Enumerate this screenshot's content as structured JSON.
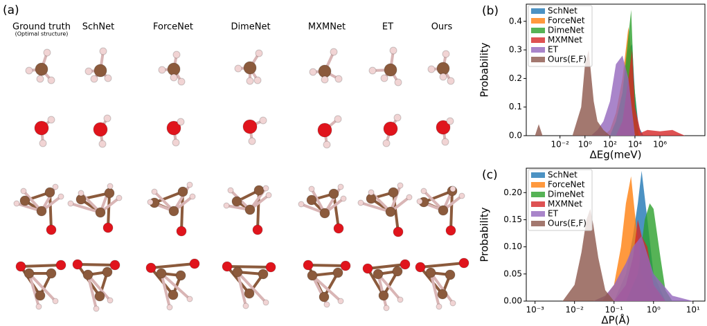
{
  "panel_a": {
    "label": "(a)",
    "columns": [
      "Ground truth",
      "SchNet",
      "ForceNet",
      "DimeNet",
      "MXMNet",
      "ET",
      "Ours"
    ],
    "column_note": "(Optimal structure)"
  },
  "chart_data": [
    {
      "type": "area",
      "panel": "(b)",
      "x_label": "ΔEg(meV)",
      "y_label": "Probability",
      "log_x": true,
      "legend": "upper-left",
      "xlim": [
        2e-05,
        4000000000
      ],
      "ylim": [
        0,
        0.46
      ],
      "xticks": [
        {
          "value": 0.01,
          "label": "10⁻²"
        },
        {
          "value": 1,
          "label": "10⁰"
        },
        {
          "value": 100,
          "label": "10²"
        },
        {
          "value": 10000,
          "label": "10⁴"
        },
        {
          "value": 1000000,
          "label": "10⁶"
        }
      ],
      "yticks": [
        {
          "value": 0,
          "label": "0.0"
        },
        0.1,
        0.2,
        0.3,
        0.4
      ],
      "series": [
        {
          "name": "SchNet",
          "color": "#1f77b4",
          "x": [
            100,
            300,
            1000,
            3000,
            6000,
            10000,
            20000,
            50000
          ],
          "values": [
            0,
            0.05,
            0.15,
            0.3,
            0.32,
            0.15,
            0.03,
            0
          ]
        },
        {
          "name": "ForceNet",
          "color": "#ff7f0e",
          "x": [
            30,
            100,
            300,
            1000,
            3000,
            5000,
            10000,
            30000
          ],
          "values": [
            0,
            0.02,
            0.08,
            0.2,
            0.38,
            0.3,
            0.05,
            0
          ]
        },
        {
          "name": "DimeNet",
          "color": "#2ca02c",
          "x": [
            100,
            300,
            1000,
            3000,
            5000,
            8000,
            20000
          ],
          "values": [
            0,
            0.05,
            0.15,
            0.35,
            0.44,
            0.2,
            0
          ]
        },
        {
          "name": "MXMNet",
          "color": "#d62728",
          "x": [
            300,
            1000,
            3000,
            6000,
            10000,
            30000,
            100000,
            1000000,
            10000000,
            30000000,
            100000000
          ],
          "values": [
            0,
            0.05,
            0.2,
            0.3,
            0.1,
            0.01,
            0.02,
            0.015,
            0.02,
            0.01,
            0
          ]
        },
        {
          "name": "ET",
          "color": "#9467bd",
          "x": [
            3,
            10,
            30,
            100,
            300,
            1000,
            3000,
            10000
          ],
          "values": [
            0,
            0.02,
            0.05,
            0.12,
            0.25,
            0.28,
            0.2,
            0
          ]
        },
        {
          "name": "Ours(E,F)",
          "color": "#8c564b",
          "x": [
            0.0001,
            0.0002,
            0.0004,
            0.1,
            0.5,
            1,
            2,
            5,
            10,
            30,
            100
          ],
          "values": [
            0,
            0.04,
            0,
            0,
            0.1,
            0.25,
            0.3,
            0.12,
            0.05,
            0.02,
            0
          ]
        }
      ]
    },
    {
      "type": "area",
      "panel": "(c)",
      "x_label": "ΔP(Å)",
      "y_label": "Probability",
      "log_x": true,
      "legend": "upper-left",
      "xlim": [
        0.0006,
        20
      ],
      "ylim": [
        0,
        0.245
      ],
      "xticks": [
        {
          "value": 0.001,
          "label": "10⁻³"
        },
        {
          "value": 0.01,
          "label": "10⁻²"
        },
        {
          "value": 0.1,
          "label": "10⁻¹"
        },
        {
          "value": 1,
          "label": "10⁰"
        },
        {
          "value": 10,
          "label": "10¹"
        }
      ],
      "yticks": [
        {
          "value": 0,
          "label": "0.00"
        },
        0.05,
        {
          "value": 0.1,
          "label": "0.10"
        },
        0.15,
        {
          "value": 0.2,
          "label": "0.20"
        }
      ],
      "series": [
        {
          "name": "SchNet",
          "color": "#1f77b4",
          "x": [
            0.1,
            0.2,
            0.3,
            0.4,
            0.5,
            0.7,
            1,
            2
          ],
          "values": [
            0,
            0.05,
            0.12,
            0.18,
            0.24,
            0.15,
            0.05,
            0
          ]
        },
        {
          "name": "ForceNet",
          "color": "#ff7f0e",
          "x": [
            0.05,
            0.1,
            0.15,
            0.2,
            0.27,
            0.35,
            0.5,
            1
          ],
          "values": [
            0,
            0.03,
            0.1,
            0.18,
            0.23,
            0.15,
            0.05,
            0
          ]
        },
        {
          "name": "DimeNet",
          "color": "#2ca02c",
          "x": [
            0.2,
            0.4,
            0.6,
            0.8,
            1,
            1.5,
            2,
            3
          ],
          "values": [
            0,
            0.05,
            0.15,
            0.18,
            0.17,
            0.08,
            0.02,
            0
          ]
        },
        {
          "name": "MXMNet",
          "color": "#d62728",
          "x": [
            0.1,
            0.2,
            0.3,
            0.4,
            0.5,
            0.7,
            1,
            2
          ],
          "values": [
            0,
            0.03,
            0.08,
            0.15,
            0.12,
            0.1,
            0.03,
            0
          ]
        },
        {
          "name": "ET",
          "color": "#9467bd",
          "x": [
            0.03,
            0.06,
            0.1,
            0.2,
            0.3,
            0.5,
            1,
            3,
            10
          ],
          "values": [
            0,
            0.01,
            0.03,
            0.07,
            0.1,
            0.12,
            0.05,
            0.01,
            0
          ]
        },
        {
          "name": "Ours(E,F)",
          "color": "#8c564b",
          "x": [
            0.005,
            0.01,
            0.015,
            0.02,
            0.025,
            0.03,
            0.04,
            0.06,
            0.1
          ],
          "values": [
            0,
            0.03,
            0.09,
            0.15,
            0.17,
            0.14,
            0.08,
            0.02,
            0
          ]
        }
      ]
    }
  ]
}
